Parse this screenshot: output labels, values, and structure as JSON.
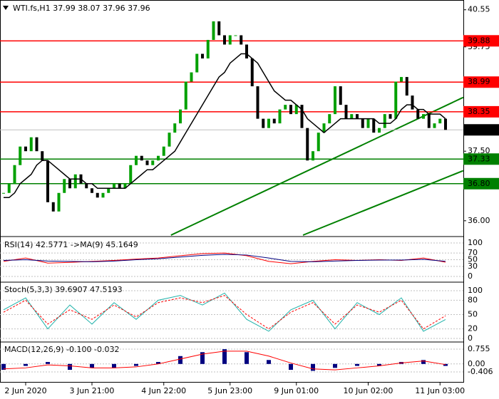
{
  "chart_data": {
    "type": "candlestick",
    "title": "WTI.fs,H1 37.99 38.07 37.96 37.96",
    "closes": [
      36.6,
      36.8,
      37.2,
      37.6,
      37.5,
      37.8,
      37.5,
      37.3,
      36.4,
      36.2,
      36.6,
      36.9,
      36.7,
      37.0,
      36.8,
      36.7,
      36.6,
      36.5,
      36.6,
      36.7,
      36.8,
      36.7,
      36.8,
      37.2,
      37.4,
      37.3,
      37.2,
      37.3,
      37.4,
      37.6,
      37.9,
      38.1,
      38.4,
      39.0,
      39.2,
      39.6,
      39.5,
      39.9,
      40.3,
      40.0,
      39.8,
      40.0,
      40.0,
      39.8,
      39.5,
      38.9,
      38.2,
      38.0,
      38.2,
      38.1,
      38.4,
      38.5,
      38.3,
      38.5,
      38.0,
      37.3,
      37.5,
      37.9,
      38.1,
      38.3,
      38.9,
      38.5,
      38.2,
      38.3,
      38.2,
      38.0,
      38.2,
      37.9,
      38.0,
      38.3,
      38.2,
      39.0,
      39.1,
      38.7,
      38.4,
      38.2,
      38.3,
      38.0,
      38.1,
      38.2,
      37.96
    ],
    "ma": [
      36.5,
      36.5,
      36.6,
      36.8,
      36.9,
      37.0,
      37.2,
      37.3,
      37.3,
      37.2,
      37.1,
      37.0,
      36.9,
      36.9,
      36.9,
      36.8,
      36.8,
      36.7,
      36.7,
      36.7,
      36.7,
      36.7,
      36.7,
      36.8,
      36.9,
      37.0,
      37.1,
      37.1,
      37.2,
      37.3,
      37.4,
      37.5,
      37.7,
      37.9,
      38.1,
      38.3,
      38.5,
      38.7,
      38.9,
      39.1,
      39.2,
      39.4,
      39.5,
      39.6,
      39.6,
      39.5,
      39.4,
      39.2,
      39.0,
      38.8,
      38.7,
      38.6,
      38.6,
      38.5,
      38.4,
      38.2,
      38.1,
      38.0,
      37.9,
      38.0,
      38.1,
      38.2,
      38.2,
      38.2,
      38.2,
      38.2,
      38.2,
      38.2,
      38.1,
      38.1,
      38.1,
      38.2,
      38.4,
      38.5,
      38.5,
      38.4,
      38.4,
      38.3,
      38.3,
      38.3,
      38.2
    ],
    "up_color": "#00a000",
    "down_color": "#000000",
    "ma_color": "#000000",
    "ylim": [
      35.69,
      40.73
    ],
    "yticks": [
      40.55,
      39.75,
      {
        "value": 37.5,
        "label": "37.50"
      },
      {
        "value": 36,
        "label": "36.00"
      }
    ],
    "levels": [
      {
        "value": 39.88,
        "label": "39.88",
        "color": "#ff0000"
      },
      {
        "value": 38.99,
        "label": "38.99",
        "color": "#ff0000"
      },
      {
        "value": 38.35,
        "label": "38.35",
        "color": "#ff0000"
      },
      {
        "value": 37.33,
        "label": "37.33",
        "color": "#008000"
      },
      {
        "value": 36.8,
        "label": "36.80",
        "color": "#008000"
      }
    ],
    "last_price": 37.96,
    "trendlines": [
      {
        "color": "#008000",
        "points": [
          [
            30.3,
            35.69
          ],
          [
            83.2,
            38.66
          ]
        ]
      },
      {
        "color": "#008000",
        "points": [
          [
            54.2,
            35.69
          ],
          [
            83.2,
            37.08
          ]
        ]
      }
    ],
    "xticks": [
      {
        "value": 4,
        "label": "2 Jun 2020"
      },
      {
        "value": 16,
        "label": "3 Jun 21:00"
      },
      {
        "value": 29,
        "label": "4 Jun 22:00"
      },
      {
        "value": 41,
        "label": "5 Jun 23:00"
      },
      {
        "value": 53,
        "label": "9 Jun 01:00"
      },
      {
        "value": 66,
        "label": "10 Jun 02:00"
      },
      {
        "value": 79,
        "label": "11 Jun 03:00"
      }
    ],
    "panels": [
      {
        "type": "line",
        "title": "RSI(14) 42.5771 ->MA(9) 45.1649",
        "ylim": [
          -10.6,
          112.8
        ],
        "yticks": [
          100,
          70,
          50,
          30,
          0
        ],
        "series": [
          {
            "color": "#ff0000",
            "values": [
              45,
              55,
              40,
              42,
              45,
              48,
              52,
              55,
              62,
              68,
              70,
              62,
              45,
              38,
              45,
              50,
              48,
              50,
              48,
              55,
              42.5771
            ]
          },
          {
            "color": "#000080",
            "values": [
              48,
              50,
              46,
              45,
              44,
              46,
              50,
              53,
              58,
              63,
              66,
              64,
              55,
              45,
              44,
              46,
              48,
              49,
              49,
              51,
              45.1649
            ]
          }
        ]
      },
      {
        "type": "line",
        "title": "Stoch(5,3,3) 39.6907 47.5193",
        "ylim": [
          -4.5,
          114.9
        ],
        "yticks": [
          100,
          80,
          50,
          20,
          0
        ],
        "series": [
          {
            "color": "#20b2aa",
            "values": [
              60,
              85,
              20,
              70,
              30,
              75,
              40,
              80,
              90,
              70,
              95,
              40,
              15,
              60,
              80,
              20,
              75,
              50,
              85,
              15,
              39.6907
            ]
          },
          {
            "color": "#ff0000",
            "dashed": true,
            "values": [
              55,
              80,
              30,
              60,
              40,
              70,
              45,
              75,
              85,
              75,
              90,
              50,
              20,
              55,
              75,
              30,
              70,
              55,
              80,
              20,
              47.5193
            ]
          }
        ]
      },
      {
        "type": "macd",
        "title": "MACD(12,26,9) -0.100 -0.032",
        "ylim": [
          -0.878,
          1.045
        ],
        "yticks": [
          0.755,
          {
            "value": 0,
            "label": "0.00"
          },
          -0.406
        ],
        "histogram": {
          "color": "#000080",
          "values": [
            -0.3,
            -0.1,
            0.1,
            -0.3,
            -0.2,
            -0.2,
            -0.1,
            0.1,
            0.4,
            0.6,
            0.75,
            0.6,
            0.2,
            -0.3,
            -0.35,
            -0.2,
            -0.1,
            -0.1,
            0.1,
            0.2,
            -0.1
          ]
        },
        "signal": {
          "color": "#ff0000",
          "values": [
            -0.25,
            -0.2,
            -0.05,
            -0.1,
            -0.2,
            -0.2,
            -0.15,
            0,
            0.25,
            0.5,
            0.65,
            0.65,
            0.4,
            0.05,
            -0.25,
            -0.3,
            -0.2,
            -0.1,
            0.05,
            0.15,
            -0.032
          ]
        }
      }
    ]
  }
}
